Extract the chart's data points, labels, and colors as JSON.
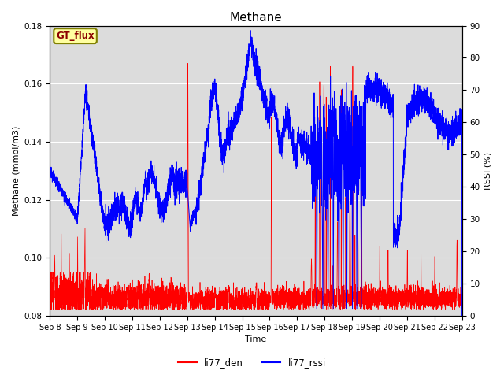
{
  "title": "Methane",
  "ylabel_left": "Methane (mmol/m3)",
  "ylabel_right": "RSSI (%)",
  "xlabel": "Time",
  "legend_label1": "li77_den",
  "legend_label2": "li77_rssi",
  "annotation": "GT_flux",
  "ylim_left": [
    0.08,
    0.18
  ],
  "ylim_right": [
    0,
    90
  ],
  "color_red": "#FF0000",
  "color_blue": "#0000FF",
  "bg_color": "#DCDCDC",
  "title_fontsize": 11,
  "label_fontsize": 8,
  "tick_fontsize": 7.5,
  "figwidth": 6.4,
  "figheight": 4.8,
  "dpi": 100
}
